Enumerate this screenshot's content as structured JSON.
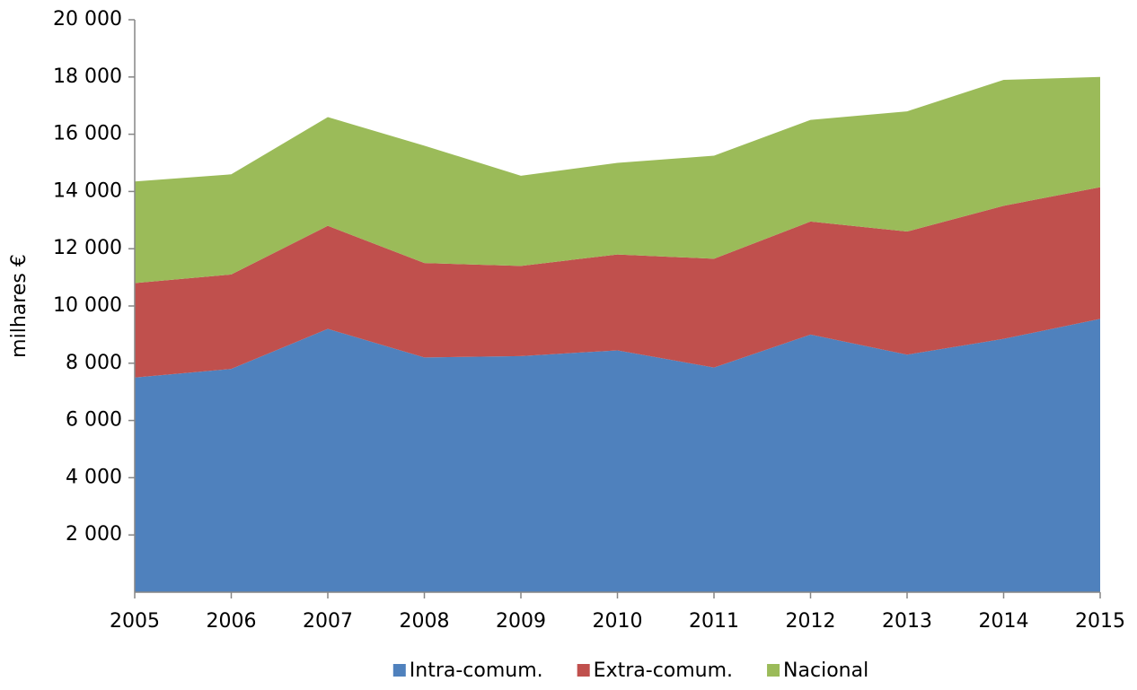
{
  "chart_data": {
    "type": "stacked-area",
    "y_label": "milhares €",
    "x": [
      2005,
      2006,
      2007,
      2008,
      2009,
      2010,
      2011,
      2012,
      2013,
      2014,
      2015
    ],
    "xlim": [
      2005,
      2015
    ],
    "xticks": [
      2005,
      2006,
      2007,
      2008,
      2009,
      2010,
      2011,
      2012,
      2013,
      2014,
      2015
    ],
    "ylim": [
      0,
      20000
    ],
    "yticks": [
      {
        "value": 2000,
        "label": "2 000"
      },
      {
        "value": 4000,
        "label": "4 000"
      },
      {
        "value": 6000,
        "label": "6 000"
      },
      {
        "value": 8000,
        "label": "8 000"
      },
      {
        "value": 10000,
        "label": "10 000"
      },
      {
        "value": 12000,
        "label": "12 000"
      },
      {
        "value": 14000,
        "label": "14 000"
      },
      {
        "value": 16000,
        "label": "16 000"
      },
      {
        "value": 18000,
        "label": "18 000"
      },
      {
        "value": 20000,
        "label": "20 000"
      }
    ],
    "legend": "bottom",
    "series": [
      {
        "name": "Intra-comum.",
        "color": "#4f81bd",
        "values": [
          7500,
          7800,
          9200,
          8200,
          8250,
          8450,
          7850,
          9000,
          8300,
          8850,
          9550
        ]
      },
      {
        "name": "Extra-comum.",
        "color": "#c0504d",
        "values": [
          3300,
          3300,
          3600,
          3300,
          3150,
          3350,
          3800,
          3950,
          4300,
          4650,
          4600
        ]
      },
      {
        "name": "Nacional",
        "color": "#9bbb59",
        "values": [
          3550,
          3500,
          3800,
          4100,
          3150,
          3200,
          3600,
          3550,
          4200,
          4400,
          3850
        ]
      }
    ]
  }
}
